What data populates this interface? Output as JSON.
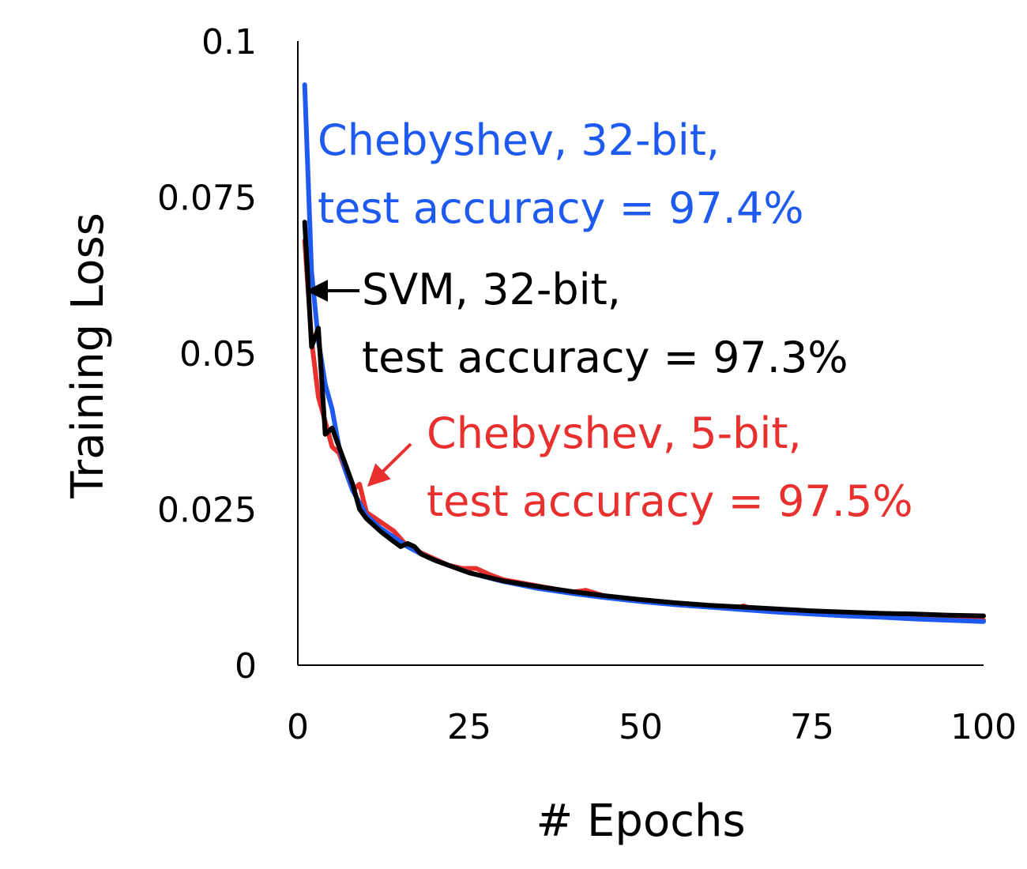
{
  "chart_data": {
    "type": "line",
    "xlabel": "# Epochs",
    "ylabel": "Training Loss",
    "xlim": [
      0,
      100
    ],
    "ylim": [
      0,
      0.1
    ],
    "xticks": [
      "0",
      "25",
      "50",
      "75",
      "100"
    ],
    "yticks": [
      "0",
      "0.025",
      "0.05",
      "0.075",
      "0.1"
    ],
    "grid": false,
    "legend": "none",
    "series": [
      {
        "color": "#1f5af0",
        "x": [
          1,
          2,
          3,
          4,
          5,
          6,
          7,
          8,
          9,
          10,
          12,
          14,
          16,
          18,
          20,
          25,
          30,
          35,
          40,
          45,
          50,
          55,
          60,
          65,
          70,
          75,
          80,
          85,
          90,
          95,
          100
        ],
        "y": [
          0.093,
          0.063,
          0.052,
          0.045,
          0.041,
          0.035,
          0.031,
          0.028,
          0.026,
          0.024,
          0.022,
          0.0205,
          0.019,
          0.0178,
          0.0168,
          0.0148,
          0.0134,
          0.0123,
          0.0115,
          0.0108,
          0.0102,
          0.0097,
          0.0093,
          0.0089,
          0.0085,
          0.0082,
          0.0079,
          0.0077,
          0.0074,
          0.0072,
          0.007
        ]
      },
      {
        "color": "#000000",
        "x": [
          1,
          2,
          3,
          4,
          5,
          6,
          7,
          8,
          9,
          10,
          12,
          14,
          15,
          16,
          17,
          18,
          20,
          25,
          30,
          35,
          40,
          45,
          50,
          55,
          60,
          65,
          70,
          75,
          80,
          85,
          90,
          95,
          100
        ],
        "y": [
          0.071,
          0.051,
          0.054,
          0.037,
          0.038,
          0.035,
          0.032,
          0.029,
          0.025,
          0.0235,
          0.0215,
          0.0198,
          0.019,
          0.0195,
          0.019,
          0.0178,
          0.0168,
          0.0148,
          0.0135,
          0.0126,
          0.0118,
          0.0111,
          0.0105,
          0.01,
          0.0096,
          0.0093,
          0.009,
          0.0087,
          0.0085,
          0.0083,
          0.0082,
          0.008,
          0.0079
        ]
      },
      {
        "color": "#e8302f",
        "x": [
          1,
          2,
          3,
          4,
          5,
          6,
          7,
          8,
          9,
          10,
          12,
          14,
          16,
          18,
          20,
          22,
          24,
          26,
          28,
          30,
          35,
          40,
          42,
          45,
          50,
          55,
          60,
          64,
          65,
          66,
          70,
          75,
          80,
          85,
          90,
          95,
          100
        ],
        "y": [
          0.068,
          0.052,
          0.043,
          0.039,
          0.035,
          0.034,
          0.031,
          0.028,
          0.029,
          0.0245,
          0.023,
          0.0215,
          0.019,
          0.018,
          0.017,
          0.016,
          0.0155,
          0.0155,
          0.0145,
          0.0137,
          0.0127,
          0.0117,
          0.012,
          0.011,
          0.0104,
          0.0099,
          0.0094,
          0.0091,
          0.0095,
          0.0091,
          0.0088,
          0.0084,
          0.0081,
          0.0078,
          0.0076,
          0.0074,
          0.0072
        ]
      }
    ],
    "annotations": [
      {
        "lines": [
          "Chebyshev, 32-bit,",
          "test accuracy = 97.4%"
        ],
        "color": "#1f5af0"
      },
      {
        "lines": [
          "SVM, 32-bit,",
          "test accuracy = 97.3%"
        ],
        "color": "#000000"
      },
      {
        "lines": [
          "Chebyshev, 5-bit,",
          "test accuracy = 97.5%"
        ],
        "color": "#e8302f"
      }
    ]
  }
}
